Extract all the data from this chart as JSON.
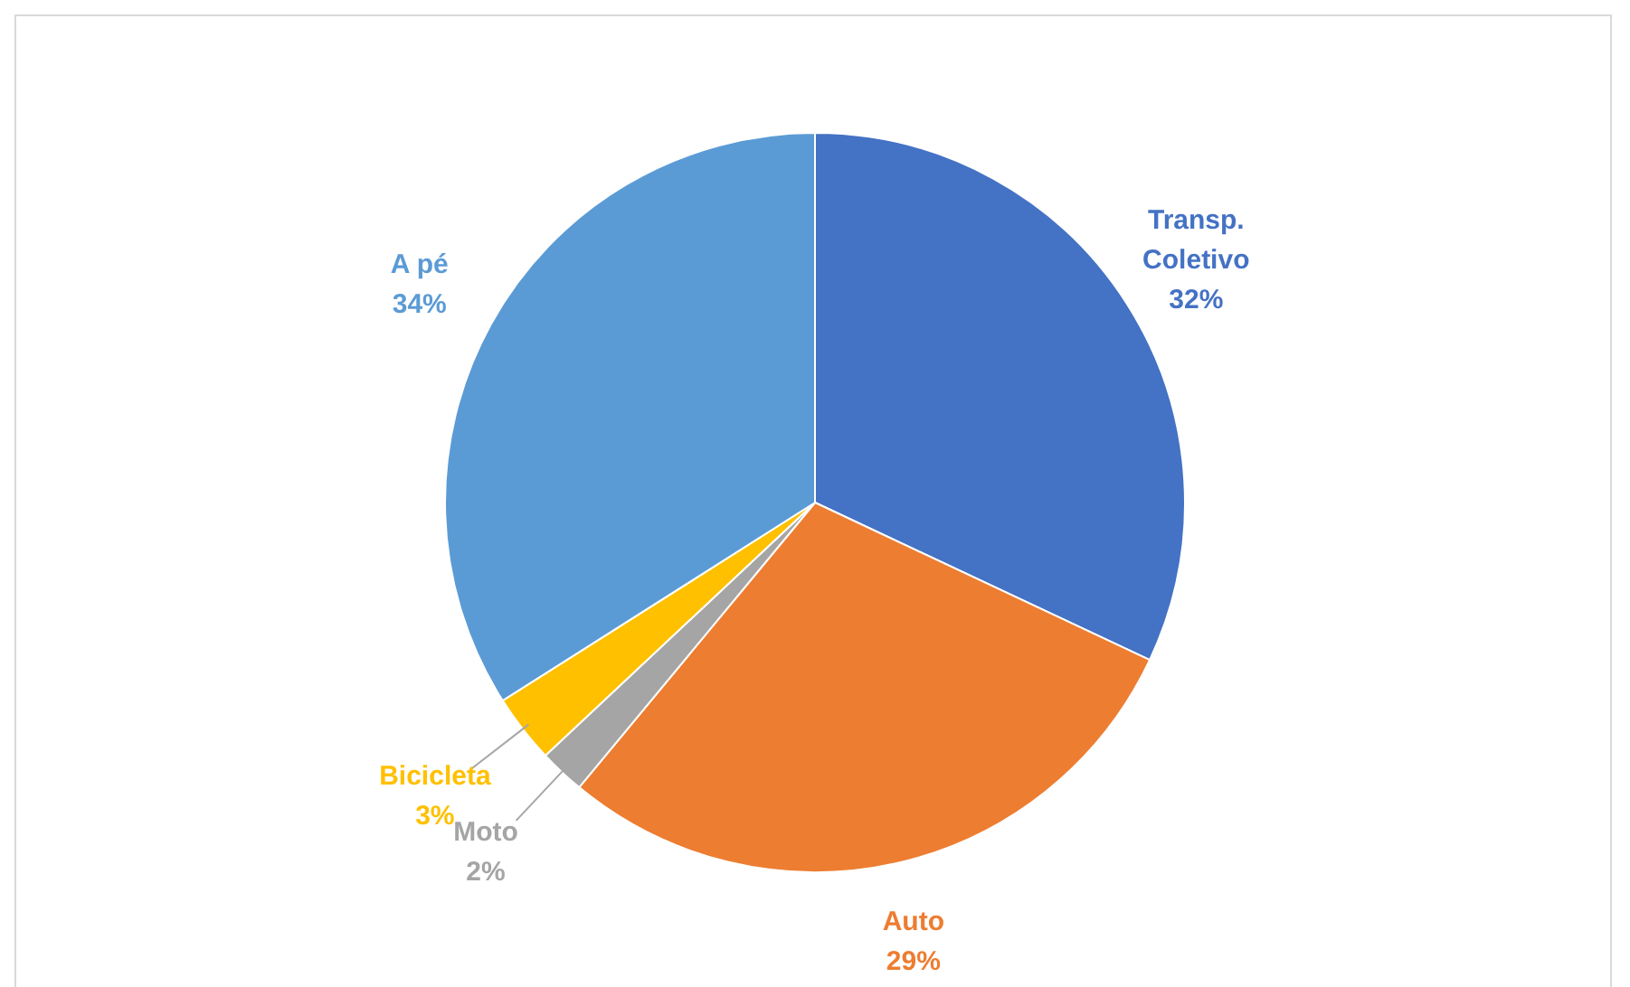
{
  "chart_data": {
    "type": "pie",
    "categories": [
      "Transp. Coletivo",
      "Auto",
      "Moto",
      "Bicicleta",
      "A pé"
    ],
    "values": [
      32,
      29,
      2,
      3,
      34
    ],
    "colors": [
      "#4472c4",
      "#ed7d31",
      "#a5a5a5",
      "#ffc000",
      "#5b9bd5"
    ],
    "value_labels": [
      "32%",
      "29%",
      "2%",
      "3%",
      "34%"
    ],
    "legend": false
  }
}
